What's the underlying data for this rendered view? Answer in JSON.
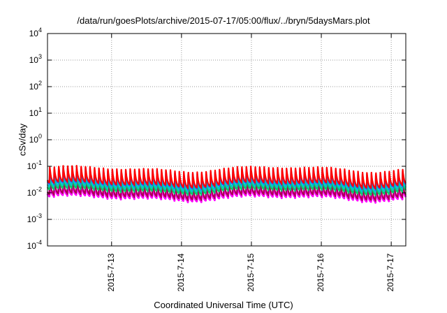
{
  "chart_data": {
    "type": "line",
    "title": "/data/run/goesPlots/archive/2015-07-17/05:00/flux/../bryn/5daysMars.plot",
    "xlabel": "Coordinated Universal Time (UTC)",
    "ylabel": "cSv/day",
    "yscale": "log",
    "ylim": [
      0.0001,
      10000
    ],
    "xlim": [
      "2015-07-12T02:00",
      "2015-07-17T05:00"
    ],
    "grid": true,
    "y_ticks": [
      {
        "base": "10",
        "exp": "4"
      },
      {
        "base": "10",
        "exp": "3"
      },
      {
        "base": "10",
        "exp": "2"
      },
      {
        "base": "10",
        "exp": "1"
      },
      {
        "base": "10",
        "exp": "0"
      },
      {
        "base": "10",
        "exp": "-1"
      },
      {
        "base": "10",
        "exp": "-2"
      },
      {
        "base": "10",
        "exp": "-3"
      },
      {
        "base": "10",
        "exp": "-4"
      }
    ],
    "x_ticks": [
      {
        "label": "2015-7-13",
        "t": "2015-07-13T00:00"
      },
      {
        "label": "2015-7-14",
        "t": "2015-07-14T00:00"
      },
      {
        "label": "2015-7-15",
        "t": "2015-07-15T00:00"
      },
      {
        "label": "2015-7-16",
        "t": "2015-07-16T00:00"
      },
      {
        "label": "2015-7-17",
        "t": "2015-07-17T00:00"
      }
    ],
    "series": [
      {
        "color": "#ff00ff",
        "values_note": "",
        "peak": 0.03,
        "trough": 0.006
      },
      {
        "color": "#aa0055",
        "peak": 0.035,
        "trough": 0.007
      },
      {
        "color": "#00cc66",
        "peak": 0.045,
        "trough": 0.011
      },
      {
        "color": "#00c8c8",
        "peak": 0.055,
        "trough": 0.014
      },
      {
        "color": "#2255ff",
        "peak": 0.075,
        "trough": 0.018
      },
      {
        "color": "#ff0000",
        "peak": 0.085,
        "trough": 0.02
      }
    ]
  }
}
